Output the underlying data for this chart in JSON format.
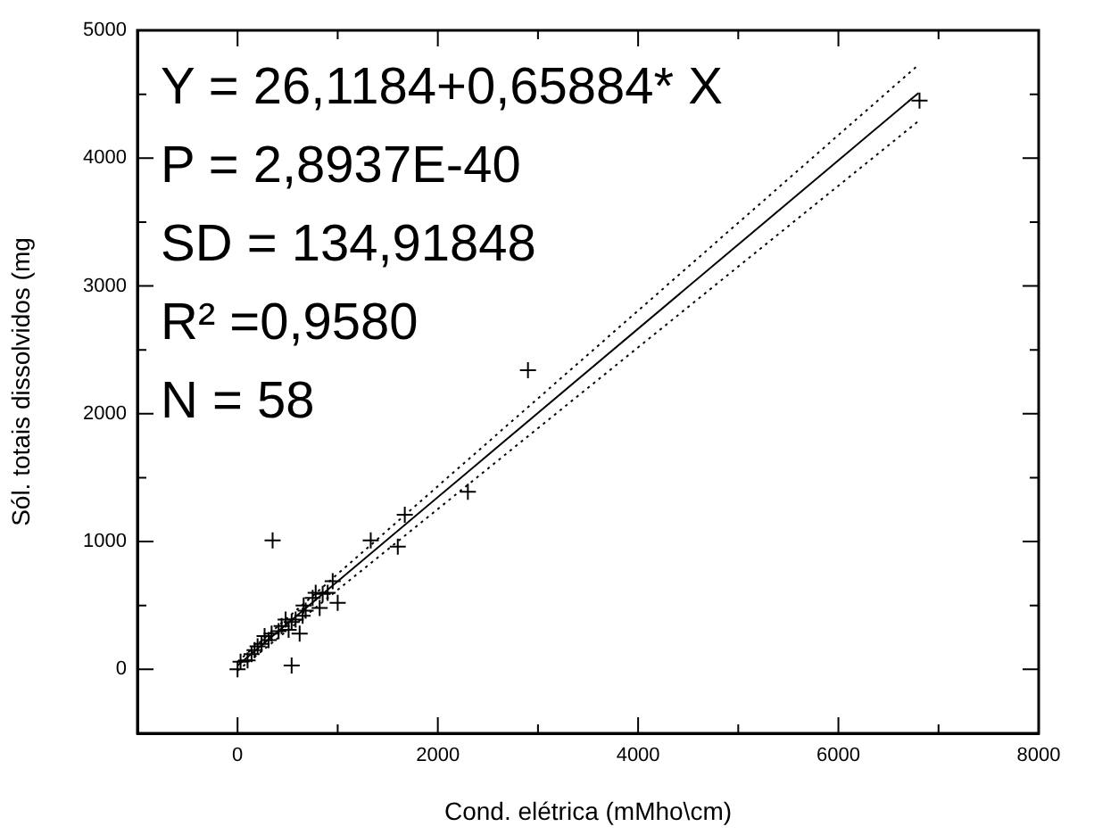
{
  "chart_data": {
    "type": "scatter",
    "xlabel": "Cond. elétrica (mMho\\cm)",
    "ylabel": "Sól. totais dissolvidos (mg",
    "annotations": [
      "Y = 26,1184+0,65884* X",
      "P = 2,8937E-40",
      "SD = 134,91848",
      "R² =0,9580",
      "N = 58"
    ],
    "xlim": [
      -1000,
      8000
    ],
    "xticks": [
      {
        "value": -1000,
        "label": null
      },
      0,
      {
        "value": 1000,
        "label": null
      },
      2000,
      {
        "value": 3000,
        "label": null
      },
      4000,
      {
        "value": 5000,
        "label": null
      },
      6000,
      {
        "value": 7000,
        "label": null
      },
      8000
    ],
    "ylim": [
      -500,
      5000
    ],
    "yticks": [
      {
        "value": -500,
        "label": null
      },
      0,
      {
        "value": 500,
        "label": null
      },
      1000,
      {
        "value": 1500,
        "label": null
      },
      2000,
      {
        "value": 2500,
        "label": null
      },
      3000,
      {
        "value": 3500,
        "label": null
      },
      4000,
      {
        "value": 4500,
        "label": null
      },
      5000
    ],
    "grid": false,
    "legend": false,
    "series": [
      {
        "type": "scatter",
        "color": "#000000",
        "marker": "cross",
        "x": [
          6810,
          2900,
          2300,
          1670,
          1600,
          1330,
          350,
          540,
          1000,
          950,
          850,
          780,
          750,
          660,
          650,
          620,
          580,
          540,
          480,
          440,
          410,
          340,
          310,
          270,
          240,
          200,
          170,
          140,
          30,
          0,
          100,
          820,
          900,
          680,
          510
        ],
        "values": [
          4450,
          2340,
          1390,
          1210,
          960,
          1010,
          1010,
          30,
          520,
          690,
          590,
          600,
          560,
          500,
          420,
          280,
          390,
          370,
          390,
          340,
          300,
          280,
          230,
          260,
          200,
          180,
          150,
          120,
          60,
          0,
          70,
          480,
          600,
          460,
          310
        ]
      },
      {
        "type": "line",
        "color": "#000000",
        "marker": "none",
        "line_style": "solid",
        "x": [
          0,
          6800
        ],
        "values": [
          30,
          4510
        ]
      },
      {
        "type": "line",
        "color": "#000000",
        "marker": "none",
        "line_style": "dotted",
        "x": [
          0,
          6800
        ],
        "values": [
          60,
          4730
        ]
      },
      {
        "type": "line",
        "color": "#000000",
        "marker": "none",
        "line_style": "dotted",
        "x": [
          0,
          6800
        ],
        "values": [
          -10,
          4290
        ]
      }
    ]
  }
}
